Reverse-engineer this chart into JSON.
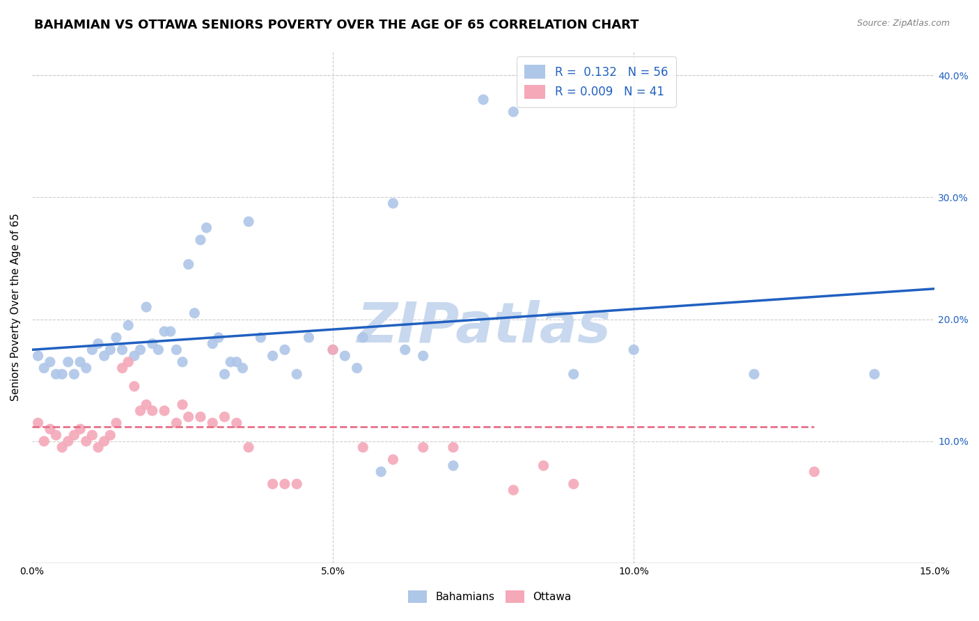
{
  "title": "BAHAMIAN VS OTTAWA SENIORS POVERTY OVER THE AGE OF 65 CORRELATION CHART",
  "source": "Source: ZipAtlas.com",
  "ylabel": "Seniors Poverty Over the Age of 65",
  "xlim": [
    0.0,
    0.15
  ],
  "ylim": [
    0.0,
    0.42
  ],
  "xticks": [
    0.0,
    0.05,
    0.1,
    0.15
  ],
  "yticks": [
    0.1,
    0.2,
    0.3,
    0.4
  ],
  "xtick_labels": [
    "0.0%",
    "5.0%",
    "10.0%",
    "15.0%"
  ],
  "right_ytick_labels": [
    "10.0%",
    "20.0%",
    "30.0%",
    "40.0%"
  ],
  "bahamian_R": "0.132",
  "bahamian_N": "56",
  "ottawa_R": "0.009",
  "ottawa_N": "41",
  "bahamian_color": "#aec6e8",
  "ottawa_color": "#f4a8b8",
  "bahamian_line_color": "#2060c0",
  "ottawa_line_color": "#e8708a",
  "legend_text_color": "#2060c0",
  "bahamian_x": [
    0.001,
    0.002,
    0.003,
    0.004,
    0.005,
    0.006,
    0.007,
    0.008,
    0.009,
    0.01,
    0.011,
    0.012,
    0.013,
    0.014,
    0.015,
    0.016,
    0.017,
    0.018,
    0.019,
    0.02,
    0.021,
    0.022,
    0.023,
    0.024,
    0.025,
    0.026,
    0.027,
    0.028,
    0.029,
    0.03,
    0.031,
    0.032,
    0.033,
    0.034,
    0.035,
    0.036,
    0.038,
    0.04,
    0.042,
    0.044,
    0.046,
    0.05,
    0.052,
    0.054,
    0.055,
    0.058,
    0.06,
    0.062,
    0.065,
    0.07,
    0.075,
    0.08,
    0.09,
    0.1,
    0.12,
    0.14
  ],
  "bahamian_y": [
    0.17,
    0.16,
    0.165,
    0.155,
    0.155,
    0.165,
    0.155,
    0.165,
    0.16,
    0.175,
    0.18,
    0.17,
    0.175,
    0.185,
    0.175,
    0.195,
    0.17,
    0.175,
    0.21,
    0.18,
    0.175,
    0.19,
    0.19,
    0.175,
    0.165,
    0.245,
    0.205,
    0.265,
    0.275,
    0.18,
    0.185,
    0.155,
    0.165,
    0.165,
    0.16,
    0.28,
    0.185,
    0.17,
    0.175,
    0.155,
    0.185,
    0.175,
    0.17,
    0.16,
    0.185,
    0.075,
    0.295,
    0.175,
    0.17,
    0.08,
    0.38,
    0.37,
    0.155,
    0.175,
    0.155,
    0.155
  ],
  "ottawa_x": [
    0.001,
    0.002,
    0.003,
    0.004,
    0.005,
    0.006,
    0.007,
    0.008,
    0.009,
    0.01,
    0.011,
    0.012,
    0.013,
    0.014,
    0.015,
    0.016,
    0.017,
    0.018,
    0.019,
    0.02,
    0.022,
    0.024,
    0.025,
    0.026,
    0.028,
    0.03,
    0.032,
    0.034,
    0.036,
    0.04,
    0.042,
    0.044,
    0.05,
    0.055,
    0.06,
    0.065,
    0.07,
    0.08,
    0.085,
    0.09,
    0.13
  ],
  "ottawa_y": [
    0.115,
    0.1,
    0.11,
    0.105,
    0.095,
    0.1,
    0.105,
    0.11,
    0.1,
    0.105,
    0.095,
    0.1,
    0.105,
    0.115,
    0.16,
    0.165,
    0.145,
    0.125,
    0.13,
    0.125,
    0.125,
    0.115,
    0.13,
    0.12,
    0.12,
    0.115,
    0.12,
    0.115,
    0.095,
    0.065,
    0.065,
    0.065,
    0.175,
    0.095,
    0.085,
    0.095,
    0.095,
    0.06,
    0.08,
    0.065,
    0.075
  ],
  "background_color": "#ffffff",
  "grid_color": "#cccccc",
  "title_fontsize": 13,
  "axis_label_fontsize": 11,
  "tick_fontsize": 10,
  "watermark": "ZIPatlas",
  "watermark_color": "#c8d8ee"
}
